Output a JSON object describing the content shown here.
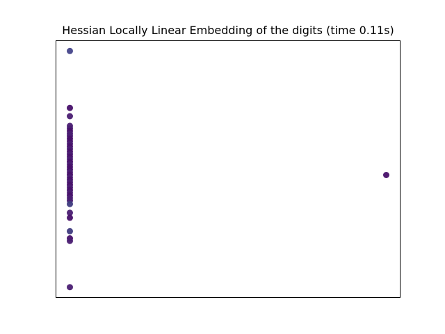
{
  "chart_data": {
    "type": "scatter",
    "title": "Hessian Locally Linear Embedding of the digits (time 0.11s)",
    "xlabel": "",
    "ylabel": "",
    "xticks": [],
    "yticks": [],
    "grid": false,
    "legend": "none",
    "xlim": [
      -0.045,
      1.045
    ],
    "ylim": [
      -0.045,
      1.045
    ],
    "colors": {
      "outlier_top": "#45458a",
      "cluster_dark": "#48106a",
      "cluster_mid": "#4a1d72",
      "cluster_blue": "#3f3b80",
      "frame": "#000000"
    },
    "series": [
      {
        "values": [
          [
            0.0,
            1.0,
            "#45458a"
          ],
          [
            0.0,
            0.759,
            "#48106a"
          ],
          [
            0.0,
            0.724,
            "#4a1d72"
          ],
          [
            0.0,
            0.683,
            "#4a1d72"
          ],
          [
            0.0,
            0.672,
            "#4a1d72"
          ],
          [
            0.0,
            0.661,
            "#48106a"
          ],
          [
            0.0,
            0.65,
            "#4a1d72"
          ],
          [
            0.0,
            0.64,
            "#4a1d72"
          ],
          [
            0.0,
            0.629,
            "#48106a"
          ],
          [
            0.0,
            0.618,
            "#48106a"
          ],
          [
            0.0,
            0.607,
            "#4a1d72"
          ],
          [
            0.0,
            0.596,
            "#48106a"
          ],
          [
            0.0,
            0.585,
            "#4a1d72"
          ],
          [
            0.0,
            0.574,
            "#48106a"
          ],
          [
            0.0,
            0.563,
            "#4a1d72"
          ],
          [
            0.0,
            0.552,
            "#48106a"
          ],
          [
            0.0,
            0.542,
            "#4a1d72"
          ],
          [
            0.0,
            0.531,
            "#48106a"
          ],
          [
            0.0,
            0.52,
            "#4a1d72"
          ],
          [
            0.0,
            0.509,
            "#48106a"
          ],
          [
            0.0,
            0.498,
            "#48106a"
          ],
          [
            0.0,
            0.487,
            "#4a1d72"
          ],
          [
            0.0,
            0.476,
            "#48106a"
          ],
          [
            0.0,
            0.465,
            "#4a1d72"
          ],
          [
            0.0,
            0.455,
            "#48106a"
          ],
          [
            0.0,
            0.444,
            "#4a1d72"
          ],
          [
            0.0,
            0.433,
            "#48106a"
          ],
          [
            0.0,
            0.422,
            "#4a1d72"
          ],
          [
            0.0,
            0.411,
            "#48106a"
          ],
          [
            0.0,
            0.4,
            "#4a1d72"
          ],
          [
            0.0,
            0.389,
            "#48106a"
          ],
          [
            0.0,
            0.378,
            "#4a1d72"
          ],
          [
            0.0,
            0.367,
            "#4a1d72"
          ],
          [
            0.0,
            0.352,
            "#3f3b80"
          ],
          [
            0.0,
            0.315,
            "#4a1d72"
          ],
          [
            0.0,
            0.294,
            "#48106a"
          ],
          [
            0.0,
            0.237,
            "#3f3b80"
          ],
          [
            0.0,
            0.207,
            "#48106a"
          ],
          [
            0.0,
            0.196,
            "#4a1d72"
          ],
          [
            0.0,
            0.0,
            "#4a1d72"
          ],
          [
            1.0,
            0.475,
            "#48106a"
          ]
        ]
      }
    ]
  }
}
